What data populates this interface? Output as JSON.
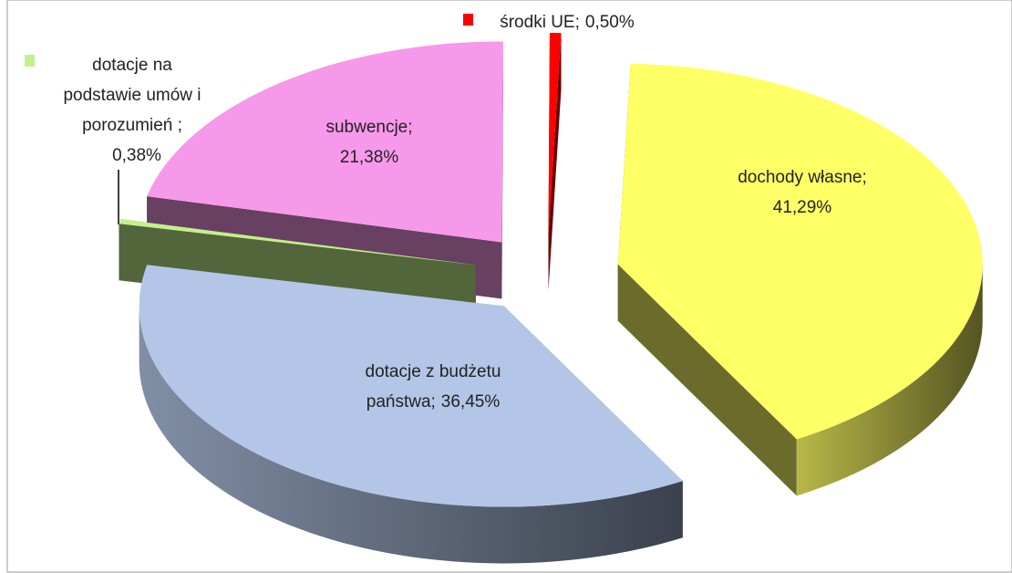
{
  "chart_data": {
    "type": "pie3d",
    "categories": [
      "dochody własne;",
      "dotacje z budżetu państwa;",
      "dotacje na podstawie umów i porozumień ;",
      "subwencje;",
      "środki UE;"
    ],
    "values": [
      41.29,
      36.45,
      0.38,
      21.38,
      0.5
    ],
    "value_labels": [
      "41,29%",
      "36,45%",
      "0,38%",
      "21,38%",
      "0,50%"
    ],
    "colors": [
      "#ffff66",
      "#b3c6e7",
      "#c4f08c",
      "#f799ea",
      "#ff0000"
    ]
  }
}
